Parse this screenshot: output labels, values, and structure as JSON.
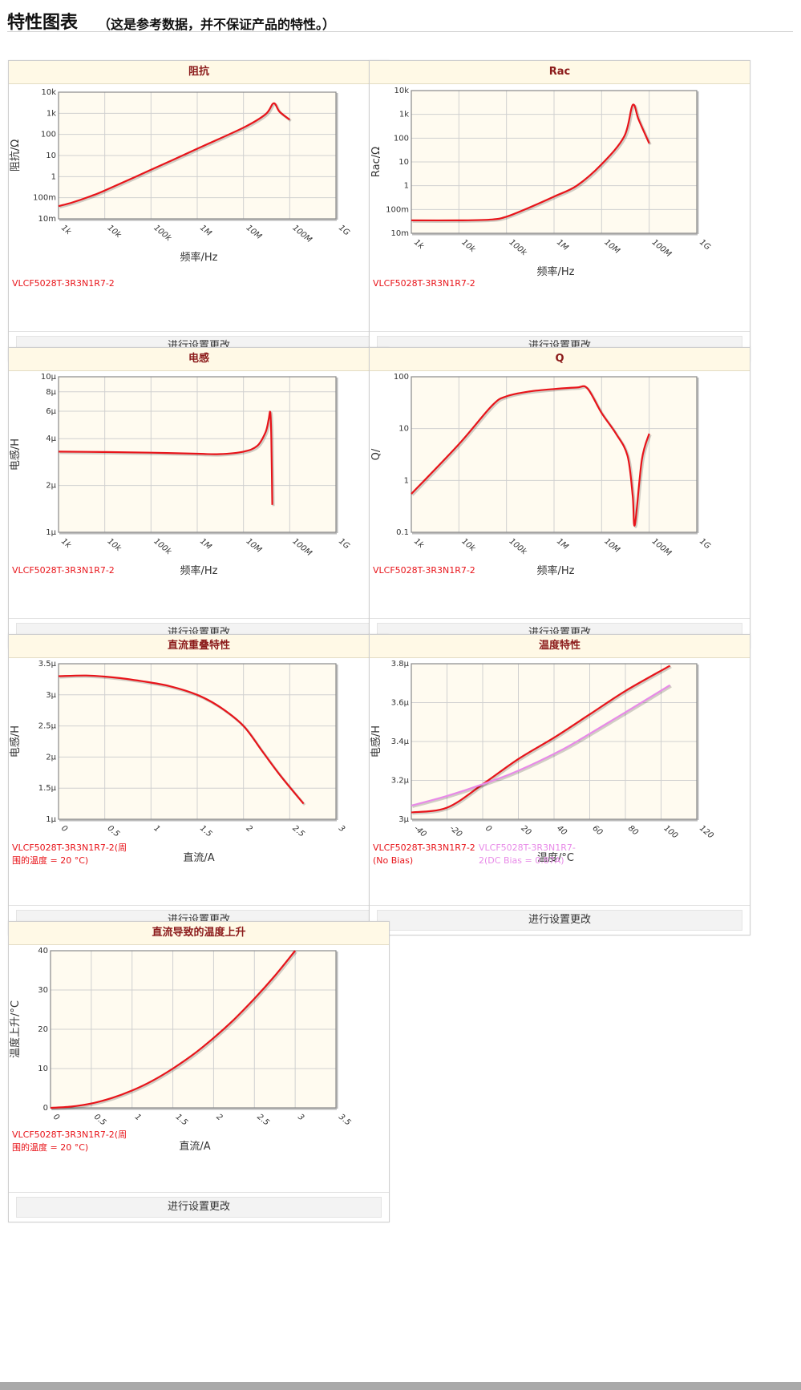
{
  "header": {
    "title": "特性图表",
    "subtitle": "（这是参考数据，并不保证产品的特性。）"
  },
  "button_label": "进行设置更改",
  "colors": {
    "series_red": "#e8141a",
    "series_pink": "#e88ae8",
    "plot_bg": "#fffbf0",
    "header_bg": "#fff9e6",
    "title": "#8b1a1a"
  },
  "charts": [
    {
      "title": "阻抗",
      "xlabel": "频率/Hz",
      "ylabel": "阻抗/Ω",
      "xticks": [
        "1k",
        "10k",
        "100k",
        "1M",
        "10M",
        "100M",
        "1G"
      ],
      "yticks": [
        "10m",
        "100m",
        "1",
        "10",
        "100",
        "1k",
        "10k"
      ],
      "legend": [
        {
          "text": "VLCF5028T-3R3N1R7-2",
          "color": "#e8141a"
        }
      ]
    },
    {
      "title": "Rac",
      "xlabel": "频率/Hz",
      "ylabel": "Rac/Ω",
      "xticks": [
        "1k",
        "10k",
        "100k",
        "1M",
        "10M",
        "100M",
        "1G"
      ],
      "yticks": [
        "10m",
        "100m",
        "1",
        "10",
        "100",
        "1k",
        "10k"
      ],
      "legend": [
        {
          "text": "VLCF5028T-3R3N1R7-2",
          "color": "#e8141a"
        }
      ]
    },
    {
      "title": "电感",
      "xlabel": "频率/Hz",
      "ylabel": "电感/H",
      "xticks": [
        "1k",
        "10k",
        "100k",
        "1M",
        "10M",
        "100M",
        "1G"
      ],
      "yticks": [
        "1µ",
        "2µ",
        "4µ",
        "6µ",
        "8µ",
        "10µ"
      ],
      "legend": [
        {
          "text": "VLCF5028T-3R3N1R7-2",
          "color": "#e8141a"
        }
      ]
    },
    {
      "title": "Q",
      "xlabel": "频率/Hz",
      "ylabel": "Q/",
      "xticks": [
        "1k",
        "10k",
        "100k",
        "1M",
        "10M",
        "100M",
        "1G"
      ],
      "yticks": [
        "0.1",
        "1",
        "10",
        "100"
      ],
      "legend": [
        {
          "text": "VLCF5028T-3R3N1R7-2",
          "color": "#e8141a"
        }
      ]
    },
    {
      "title": "直流重叠特性",
      "xlabel": "直流/A",
      "ylabel": "电感/H",
      "xticks": [
        "0",
        "0.5",
        "1",
        "1.5",
        "2",
        "2.5",
        "3"
      ],
      "yticks": [
        "1µ",
        "1.5µ",
        "2µ",
        "2.5µ",
        "3µ",
        "3.5µ"
      ],
      "legend": [
        {
          "text": "VLCF5028T-3R3N1R7-2(周围的温度 = 20 °C)",
          "color": "#e8141a"
        }
      ]
    },
    {
      "title": "温度特性",
      "xlabel": "温度/°C",
      "ylabel": "电感/H",
      "xticks": [
        "-40",
        "-20",
        "0",
        "20",
        "40",
        "60",
        "80",
        "100",
        "120"
      ],
      "yticks": [
        "3µ",
        "3.2µ",
        "3.4µ",
        "3.6µ",
        "3.8µ"
      ],
      "legend": [
        {
          "text": "VLCF5028T-3R3N1R7-2 (No Bias)",
          "color": "#e8141a"
        },
        {
          "text": "VLCF5028T-3R3N1R7-2(DC Bias = 0.87A)",
          "color": "#e88ae8"
        }
      ]
    },
    {
      "title": "直流导致的温度上升",
      "xlabel": "直流/A",
      "ylabel": "温度上升/°C",
      "xticks": [
        "0",
        "0.5",
        "1",
        "1.5",
        "2",
        "2.5",
        "3",
        "3.5"
      ],
      "yticks": [
        "0",
        "10",
        "20",
        "30",
        "40"
      ],
      "legend": [
        {
          "text": "VLCF5028T-3R3N1R7-2(周围的温度 = 20 °C)",
          "color": "#e8141a"
        }
      ]
    }
  ],
  "chart_data": [
    {
      "type": "line",
      "title": "阻抗",
      "xlabel": "频率/Hz",
      "ylabel": "阻抗/Ω",
      "x_scale": "log",
      "y_scale": "log",
      "xlim": [
        1000,
        1000000000
      ],
      "ylim": [
        0.01,
        10000
      ],
      "grid": true,
      "series": [
        {
          "name": "VLCF5028T-3R3N1R7-2",
          "color": "#e8141a",
          "x": [
            1000,
            2000,
            5000,
            10000,
            100000,
            1000000,
            10000000,
            30000000,
            45000000,
            60000000,
            100000000
          ],
          "y": [
            0.04,
            0.06,
            0.12,
            0.22,
            2.1,
            21,
            210,
            900,
            3000,
            1200,
            500
          ]
        }
      ]
    },
    {
      "type": "line",
      "title": "Rac",
      "xlabel": "频率/Hz",
      "ylabel": "Rac/Ω",
      "x_scale": "log",
      "y_scale": "log",
      "xlim": [
        1000,
        1000000000
      ],
      "ylim": [
        0.01,
        10000
      ],
      "grid": true,
      "series": [
        {
          "name": "VLCF5028T-3R3N1R7-2",
          "color": "#e8141a",
          "x": [
            1000,
            10000,
            50000,
            100000,
            300000,
            1000000,
            3000000,
            10000000,
            30000000,
            45000000,
            60000000,
            100000000
          ],
          "y": [
            0.035,
            0.035,
            0.038,
            0.05,
            0.12,
            0.35,
            1.0,
            8,
            120,
            2500,
            600,
            60
          ]
        }
      ]
    },
    {
      "type": "line",
      "title": "电感",
      "xlabel": "频率/Hz",
      "ylabel": "电感/H",
      "x_scale": "log",
      "y_scale": "log",
      "xlim": [
        1000,
        1000000000
      ],
      "ylim": [
        1e-06,
        1e-05
      ],
      "grid": true,
      "series": [
        {
          "name": "VLCF5028T-3R3N1R7-2",
          "color": "#e8141a",
          "x": [
            1000,
            10000,
            100000,
            1000000,
            3000000,
            10000000,
            20000000,
            30000000,
            35000000,
            38000000,
            40000000,
            42000000
          ],
          "y": [
            3.3e-06,
            3.28e-06,
            3.25e-06,
            3.2e-06,
            3.18e-06,
            3.3e-06,
            3.6e-06,
            4.4e-06,
            5.3e-06,
            5.9e-06,
            4e-06,
            1.5e-06
          ]
        }
      ]
    },
    {
      "type": "line",
      "title": "Q",
      "xlabel": "频率/Hz",
      "ylabel": "Q/",
      "x_scale": "log",
      "y_scale": "log",
      "xlim": [
        1000,
        1000000000
      ],
      "ylim": [
        0.1,
        100
      ],
      "grid": true,
      "series": [
        {
          "name": "VLCF5028T-3R3N1R7-2",
          "color": "#e8141a",
          "x": [
            1000,
            10000,
            50000,
            100000,
            300000,
            1000000,
            3000000,
            5000000,
            10000000,
            20000000,
            35000000,
            45000000,
            50000000,
            70000000,
            100000000
          ],
          "y": [
            0.55,
            5,
            28,
            42,
            52,
            58,
            62,
            60,
            20,
            8,
            3,
            0.5,
            0.14,
            2.5,
            8
          ]
        }
      ]
    },
    {
      "type": "line",
      "title": "直流重叠特性",
      "xlabel": "直流/A",
      "ylabel": "电感/H",
      "xlim": [
        0,
        3
      ],
      "ylim": [
        1e-06,
        3.5e-06
      ],
      "grid": true,
      "series": [
        {
          "name": "VLCF5028T-3R3N1R7-2(周围的温度 = 20 °C)",
          "color": "#e8141a",
          "x": [
            0,
            0.3,
            0.6,
            0.9,
            1.2,
            1.5,
            1.75,
            2.0,
            2.2,
            2.4,
            2.65
          ],
          "y": [
            3.3e-06,
            3.31e-06,
            3.28e-06,
            3.22e-06,
            3.14e-06,
            3e-06,
            2.8e-06,
            2.5e-06,
            2.1e-06,
            1.7e-06,
            1.25e-06
          ]
        }
      ]
    },
    {
      "type": "line",
      "title": "温度特性",
      "xlabel": "温度/°C",
      "ylabel": "电感/H",
      "xlim": [
        -40,
        120
      ],
      "ylim": [
        3e-06,
        3.8e-06
      ],
      "grid": true,
      "series": [
        {
          "name": "VLCF5028T-3R3N1R7-2 (No Bias)",
          "color": "#e8141a",
          "x": [
            -40,
            -20,
            0,
            20,
            40,
            60,
            80,
            105
          ],
          "y": [
            3.035e-06,
            3.06e-06,
            3.18e-06,
            3.31e-06,
            3.42e-06,
            3.54e-06,
            3.66e-06,
            3.79e-06
          ]
        },
        {
          "name": "VLCF5028T-3R3N1R7-2(DC Bias = 0.87A)",
          "color": "#e88ae8",
          "x": [
            -40,
            -20,
            0,
            20,
            45,
            60,
            80,
            105
          ],
          "y": [
            3.07e-06,
            3.12e-06,
            3.18e-06,
            3.25e-06,
            3.36e-06,
            3.44e-06,
            3.55e-06,
            3.69e-06
          ]
        }
      ]
    },
    {
      "type": "line",
      "title": "直流导致的温度上升",
      "xlabel": "直流/A",
      "ylabel": "温度上升/°C",
      "xlim": [
        0,
        3.5
      ],
      "ylim": [
        0,
        40
      ],
      "grid": true,
      "series": [
        {
          "name": "VLCF5028T-3R3N1R7-2(周围的温度 = 20 °C)",
          "color": "#e8141a",
          "x": [
            0,
            0.25,
            0.5,
            0.75,
            1.0,
            1.25,
            1.5,
            1.75,
            2.0,
            2.25,
            2.5,
            2.75,
            3.0
          ],
          "y": [
            0,
            0.3,
            1.1,
            2.5,
            4.4,
            6.9,
            10,
            13.6,
            17.8,
            22.5,
            27.8,
            33.6,
            40
          ]
        }
      ]
    }
  ]
}
